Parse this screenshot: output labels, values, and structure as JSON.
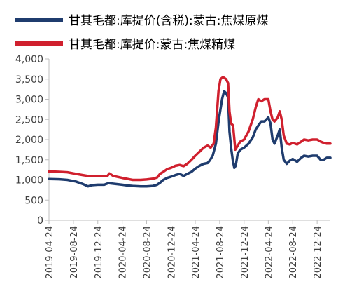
{
  "chart_data": {
    "type": "line",
    "title": "",
    "xlabel": "",
    "ylabel": "",
    "ylim": [
      0,
      4000
    ],
    "yticks": [
      0,
      500,
      1000,
      1500,
      2000,
      2500,
      3000,
      3500,
      4000
    ],
    "ytick_labels": [
      "0",
      "500",
      "1,000",
      "1,500",
      "2,000",
      "2,500",
      "3,000",
      "3,500",
      "4,000"
    ],
    "xlim": [
      "2019-04-24",
      "2023-02-28"
    ],
    "xticks": [
      "2019-04-24",
      "2019-08-24",
      "2019-12-24",
      "2020-04-24",
      "2020-08-24",
      "2020-12-24",
      "2021-04-24",
      "2021-08-24",
      "2021-12-24",
      "2022-04-24",
      "2022-08-24",
      "2022-12-24"
    ],
    "grid": false,
    "legend_position": "top",
    "series": [
      {
        "name": "甘其毛都:库提价(含税):蒙古:焦煤原煤",
        "color": "#1f3c6e",
        "points": [
          [
            "2019-04-24",
            1020
          ],
          [
            "2019-06-15",
            1015
          ],
          [
            "2019-07-25",
            1000
          ],
          [
            "2019-09-05",
            960
          ],
          [
            "2019-10-10",
            900
          ],
          [
            "2019-11-05",
            840
          ],
          [
            "2019-11-25",
            870
          ],
          [
            "2019-12-24",
            880
          ],
          [
            "2020-01-25",
            880
          ],
          [
            "2020-02-15",
            920
          ],
          [
            "2020-03-05",
            910
          ],
          [
            "2020-04-24",
            880
          ],
          [
            "2020-05-25",
            860
          ],
          [
            "2020-06-15",
            850
          ],
          [
            "2020-07-25",
            840
          ],
          [
            "2020-08-24",
            840
          ],
          [
            "2020-09-25",
            850
          ],
          [
            "2020-10-15",
            880
          ],
          [
            "2020-10-30",
            930
          ],
          [
            "2020-11-15",
            1000
          ],
          [
            "2020-12-05",
            1050
          ],
          [
            "2020-12-24",
            1080
          ],
          [
            "2021-01-15",
            1120
          ],
          [
            "2021-02-05",
            1150
          ],
          [
            "2021-02-25",
            1100
          ],
          [
            "2021-03-15",
            1150
          ],
          [
            "2021-04-05",
            1200
          ],
          [
            "2021-04-24",
            1280
          ],
          [
            "2021-05-15",
            1350
          ],
          [
            "2021-06-05",
            1400
          ],
          [
            "2021-06-25",
            1420
          ],
          [
            "2021-07-05",
            1480
          ],
          [
            "2021-07-20",
            1600
          ],
          [
            "2021-08-05",
            1900
          ],
          [
            "2021-08-20",
            2500
          ],
          [
            "2021-09-05",
            3000
          ],
          [
            "2021-09-15",
            3200
          ],
          [
            "2021-09-25",
            3150
          ],
          [
            "2021-10-05",
            3050
          ],
          [
            "2021-10-12",
            2200
          ],
          [
            "2021-10-20",
            1800
          ],
          [
            "2021-10-28",
            1500
          ],
          [
            "2021-11-05",
            1300
          ],
          [
            "2021-11-12",
            1350
          ],
          [
            "2021-11-22",
            1650
          ],
          [
            "2021-12-05",
            1750
          ],
          [
            "2021-12-24",
            1800
          ],
          [
            "2022-01-15",
            1900
          ],
          [
            "2022-02-05",
            2050
          ],
          [
            "2022-02-20",
            2250
          ],
          [
            "2022-03-05",
            2350
          ],
          [
            "2022-03-20",
            2450
          ],
          [
            "2022-04-05",
            2450
          ],
          [
            "2022-04-24",
            2550
          ],
          [
            "2022-05-05",
            2400
          ],
          [
            "2022-05-15",
            2000
          ],
          [
            "2022-05-25",
            1900
          ],
          [
            "2022-06-10",
            2100
          ],
          [
            "2022-06-20",
            2250
          ],
          [
            "2022-06-30",
            1800
          ],
          [
            "2022-07-10",
            1500
          ],
          [
            "2022-07-25",
            1400
          ],
          [
            "2022-08-10",
            1480
          ],
          [
            "2022-08-24",
            1520
          ],
          [
            "2022-09-15",
            1450
          ],
          [
            "2022-10-05",
            1550
          ],
          [
            "2022-10-20",
            1600
          ],
          [
            "2022-11-10",
            1580
          ],
          [
            "2022-12-01",
            1600
          ],
          [
            "2022-12-24",
            1600
          ],
          [
            "2023-01-10",
            1500
          ],
          [
            "2023-01-25",
            1500
          ],
          [
            "2023-02-10",
            1550
          ],
          [
            "2023-02-28",
            1550
          ]
        ]
      },
      {
        "name": "甘其毛都:库提价:蒙古:焦煤精煤",
        "color": "#d0202e",
        "points": [
          [
            "2019-04-24",
            1210
          ],
          [
            "2019-06-15",
            1200
          ],
          [
            "2019-07-25",
            1190
          ],
          [
            "2019-09-05",
            1150
          ],
          [
            "2019-10-10",
            1120
          ],
          [
            "2019-11-05",
            1100
          ],
          [
            "2019-12-24",
            1100
          ],
          [
            "2020-01-25",
            1100
          ],
          [
            "2020-02-10",
            1100
          ],
          [
            "2020-02-20",
            1160
          ],
          [
            "2020-03-10",
            1100
          ],
          [
            "2020-04-24",
            1050
          ],
          [
            "2020-05-25",
            1020
          ],
          [
            "2020-06-15",
            1000
          ],
          [
            "2020-07-25",
            1000
          ],
          [
            "2020-08-24",
            1010
          ],
          [
            "2020-09-25",
            1030
          ],
          [
            "2020-10-15",
            1060
          ],
          [
            "2020-10-30",
            1150
          ],
          [
            "2020-11-15",
            1200
          ],
          [
            "2020-12-05",
            1270
          ],
          [
            "2020-12-24",
            1300
          ],
          [
            "2021-01-15",
            1350
          ],
          [
            "2021-02-05",
            1370
          ],
          [
            "2021-02-25",
            1340
          ],
          [
            "2021-03-15",
            1400
          ],
          [
            "2021-04-05",
            1500
          ],
          [
            "2021-04-24",
            1600
          ],
          [
            "2021-05-15",
            1700
          ],
          [
            "2021-06-05",
            1800
          ],
          [
            "2021-06-25",
            1850
          ],
          [
            "2021-07-10",
            1800
          ],
          [
            "2021-07-25",
            1900
          ],
          [
            "2021-08-05",
            2300
          ],
          [
            "2021-08-18",
            3200
          ],
          [
            "2021-08-28",
            3500
          ],
          [
            "2021-09-10",
            3550
          ],
          [
            "2021-09-25",
            3500
          ],
          [
            "2021-10-05",
            3400
          ],
          [
            "2021-10-12",
            2700
          ],
          [
            "2021-10-20",
            2400
          ],
          [
            "2021-10-30",
            2350
          ],
          [
            "2021-11-10",
            1750
          ],
          [
            "2021-11-22",
            1850
          ],
          [
            "2021-12-05",
            1950
          ],
          [
            "2021-12-24",
            2000
          ],
          [
            "2022-01-15",
            2200
          ],
          [
            "2022-02-05",
            2500
          ],
          [
            "2022-02-20",
            2800
          ],
          [
            "2022-03-05",
            3000
          ],
          [
            "2022-03-20",
            2950
          ],
          [
            "2022-04-05",
            3000
          ],
          [
            "2022-04-24",
            3000
          ],
          [
            "2022-05-05",
            2700
          ],
          [
            "2022-05-15",
            2500
          ],
          [
            "2022-05-25",
            2450
          ],
          [
            "2022-06-10",
            2550
          ],
          [
            "2022-06-20",
            2700
          ],
          [
            "2022-06-30",
            2500
          ],
          [
            "2022-07-10",
            2100
          ],
          [
            "2022-07-25",
            1900
          ],
          [
            "2022-08-10",
            1880
          ],
          [
            "2022-08-24",
            1920
          ],
          [
            "2022-09-15",
            1880
          ],
          [
            "2022-10-05",
            1950
          ],
          [
            "2022-10-20",
            2000
          ],
          [
            "2022-11-10",
            1980
          ],
          [
            "2022-12-01",
            2000
          ],
          [
            "2022-12-24",
            2000
          ],
          [
            "2023-01-10",
            1950
          ],
          [
            "2023-01-25",
            1920
          ],
          [
            "2023-02-10",
            1900
          ],
          [
            "2023-02-28",
            1900
          ]
        ]
      }
    ]
  }
}
